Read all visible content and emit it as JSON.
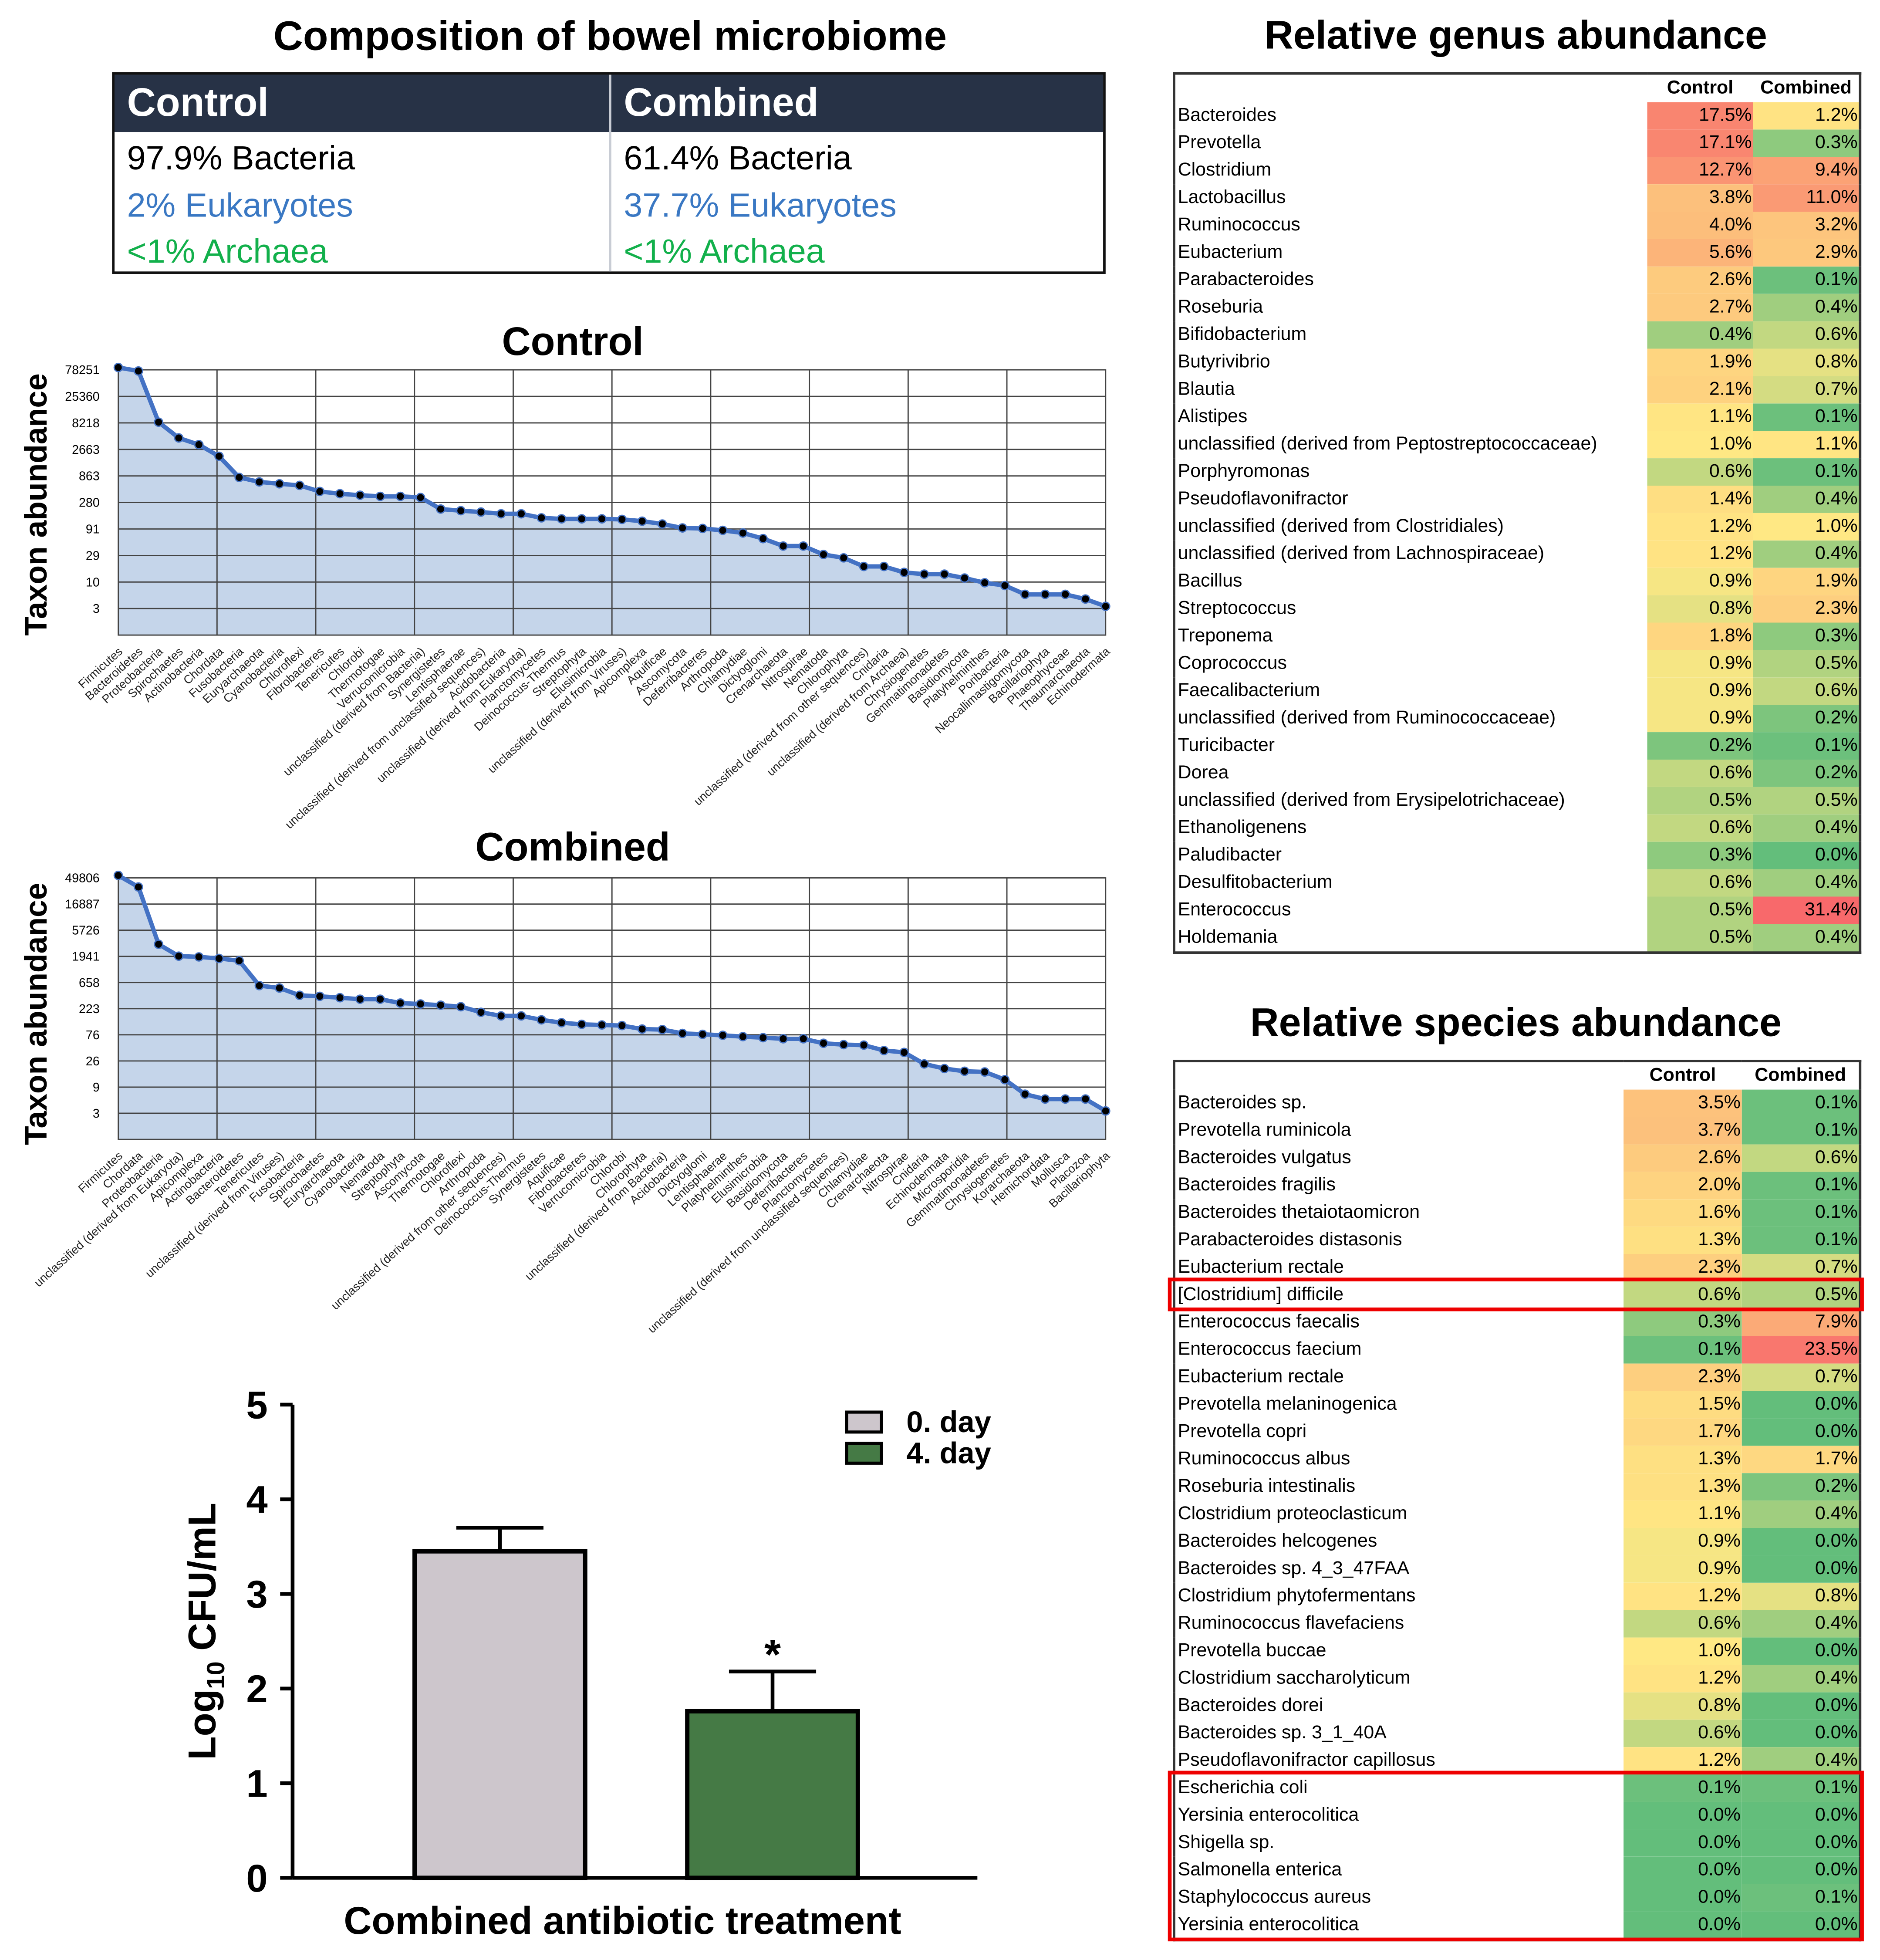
{
  "composition": {
    "title": "Composition of bowel microbiome",
    "columns": [
      {
        "header": "Control",
        "bacteria": "97.9% Bacteria",
        "eukaryotes": "2% Eukaryotes",
        "archaea": "<1% Archaea"
      },
      {
        "header": "Combined",
        "bacteria": "61.4% Bacteria",
        "eukaryotes": "37.7% Eukaryotes",
        "archaea": "<1% Archaea"
      }
    ]
  },
  "colors": {
    "header_bg": "#273246",
    "eukaryotes": "#3a78c3",
    "archaea": "#12b04b",
    "area_fill": "#c5d5ea",
    "line": "#4472c4",
    "bar_day0": "#cdc6cc",
    "bar_day4": "#457a45",
    "heat_low": "#63be7b",
    "heat_mid": "#ffe884",
    "heat_orange": "#fbaa77",
    "heat_high": "#f8696b",
    "highlight": "#ee0000"
  },
  "chart_data": [
    {
      "type": "area",
      "title": "Control",
      "ylabel": "Taxon abundance",
      "yscale": "log",
      "yticks": [
        3,
        10,
        29,
        91,
        280,
        863,
        2663,
        8218,
        25360,
        78251
      ],
      "grid": true,
      "categories": [
        "Firmicutes",
        "Bacteroidetes",
        "Proteobacteria",
        "Spirochaetes",
        "Actinobacteria",
        "Chordata",
        "Fusobacteria",
        "Euryarchaeota",
        "Cyanobacteria",
        "Chloroflexi",
        "Fibrobacteres",
        "Tenericutes",
        "Chlorobi",
        "Thermotogae",
        "Verrucomicrobia",
        "unclassified (derived from Bacteria)",
        "Synergistetes",
        "Lentisphaerae",
        "unclassified (derived from unclassified sequences)",
        "Acidobacteria",
        "unclassified (derived from Eukaryota)",
        "Planctomycetes",
        "Deinococcus-Thermus",
        "Streptophyta",
        "Elusimicrobia",
        "unclassified (derived from Viruses)",
        "Apicomplexa",
        "Aquificae",
        "Ascomycota",
        "Deferribacteres",
        "Arthropoda",
        "Chlamydiae",
        "Dictyoglomi",
        "Crenarchaeota",
        "Nitrospirae",
        "Nematoda",
        "Chlorophyta",
        "unclassified (derived from other sequences)",
        "Cnidaria",
        "unclassified (derived from Archaea)",
        "Chrysiogenetes",
        "Gemmatimonadetes",
        "Basidiomycota",
        "Platyhelminthes",
        "Poribacteria",
        "Neocallimastigomycota",
        "Bacillariophyta",
        "Phaeophyceae",
        "Thaumarchaeota",
        "Echinodermata"
      ],
      "values": [
        86500,
        74500,
        8430,
        4300,
        3230,
        1970,
        800,
        660,
        610,
        570,
        440,
        400,
        375,
        357,
        357,
        340,
        208,
        194,
        183,
        170,
        170,
        143,
        137,
        137,
        137,
        134,
        124,
        110,
        93,
        91,
        84,
        75,
        59,
        43,
        43,
        30,
        26,
        18,
        18,
        14,
        13,
        13,
        11,
        9,
        8,
        5.5,
        5.5,
        5.5,
        4.5,
        3.3
      ]
    },
    {
      "type": "area",
      "title": "Combined",
      "ylabel": "Taxon abundance",
      "yscale": "log",
      "yticks": [
        3,
        9,
        26,
        76,
        223,
        658,
        1941,
        5726,
        16887,
        49806
      ],
      "grid": true,
      "categories": [
        "Firmicutes",
        "Chordata",
        "Proteobacteria",
        "unclassified (derived from Eukaryota)",
        "Apicomplexa",
        "Actinobacteria",
        "Bacteroidetes",
        "Tenericutes",
        "unclassified (derived from Viruses)",
        "Fusobacteria",
        "Spirochaetes",
        "Euryarchaeota",
        "Cyanobacteria",
        "Nematoda",
        "Streptophyta",
        "Ascomycota",
        "Thermotogae",
        "Chloroflexi",
        "Arthropoda",
        "unclassified (derived from other sequences)",
        "Deinococcus-Thermus",
        "Synergistetes",
        "Aquificae",
        "Fibrobacteres",
        "Verrucomicrobia",
        "Chlorobi",
        "Chlorophyta",
        "unclassified (derived from Bacteria)",
        "Acidobacteria",
        "Dictyoglomi",
        "Lentisphaerae",
        "Platyhelminthes",
        "Elusimicrobia",
        "Basidiomycota",
        "Deferribacteres",
        "Planctomycetes",
        "unclassified (derived from unclassified sequences)",
        "Chlamydiae",
        "Crenarchaeota",
        "Nitrospirae",
        "Cnidaria",
        "Echinodermata",
        "Microsporidia",
        "Gemmatimonadetes",
        "Chrysiogenetes",
        "Korarchaeota",
        "Hemichordata",
        "Mollusca",
        "Placozoa",
        "Bacillariophyta"
      ],
      "values": [
        55200,
        34200,
        3220,
        1970,
        1910,
        1790,
        1630,
        583,
        528,
        391,
        375,
        354,
        333,
        333,
        284,
        273,
        260,
        244,
        194,
        167,
        167,
        142,
        126,
        118,
        115,
        112,
        97,
        95,
        81,
        78,
        75,
        71,
        68,
        65,
        65,
        54,
        51,
        50,
        40,
        37,
        23,
        19,
        17,
        16.5,
        12,
        6.6,
        5.4,
        5.4,
        5.4,
        3.3
      ]
    },
    {
      "type": "bar",
      "categories": [
        "0. day",
        "4. day"
      ],
      "values": [
        3.45,
        1.76
      ],
      "errors": [
        0.25,
        0.42
      ],
      "significance": [
        "",
        "*"
      ],
      "ylim": [
        0,
        5
      ],
      "yticks": [
        0,
        1,
        2,
        3,
        4,
        5
      ],
      "ylabel_main": "Log",
      "ylabel_sub": "10",
      "ylabel_unit": " CFU/mL",
      "xlabel": "Combined antibiotic treatment",
      "legend": [
        "0. day",
        "4. day"
      ],
      "legend_position": "top-right"
    }
  ],
  "genus_table": {
    "title": "Relative genus abundance",
    "headers": [
      "Control",
      "Combined"
    ],
    "rows": [
      {
        "name": "Bacteroides",
        "control": "17.5%",
        "combined": "1.2%"
      },
      {
        "name": "Prevotella",
        "control": "17.1%",
        "combined": "0.3%"
      },
      {
        "name": "Clostridium",
        "control": "12.7%",
        "combined": "9.4%"
      },
      {
        "name": "Lactobacillus",
        "control": "3.8%",
        "combined": "11.0%"
      },
      {
        "name": "Ruminococcus",
        "control": "4.0%",
        "combined": "3.2%"
      },
      {
        "name": "Eubacterium",
        "control": "5.6%",
        "combined": "2.9%"
      },
      {
        "name": "Parabacteroides",
        "control": "2.6%",
        "combined": "0.1%"
      },
      {
        "name": "Roseburia",
        "control": "2.7%",
        "combined": "0.4%"
      },
      {
        "name": "Bifidobacterium",
        "control": "0.4%",
        "combined": "0.6%"
      },
      {
        "name": "Butyrivibrio",
        "control": "1.9%",
        "combined": "0.8%"
      },
      {
        "name": "Blautia",
        "control": "2.1%",
        "combined": "0.7%"
      },
      {
        "name": "Alistipes",
        "control": "1.1%",
        "combined": "0.1%"
      },
      {
        "name": "unclassified (derived from Peptostreptococcaceae)",
        "control": "1.0%",
        "combined": "1.1%"
      },
      {
        "name": "Porphyromonas",
        "control": "0.6%",
        "combined": "0.1%"
      },
      {
        "name": "Pseudoflavonifractor",
        "control": "1.4%",
        "combined": "0.4%"
      },
      {
        "name": "unclassified (derived from Clostridiales)",
        "control": "1.2%",
        "combined": "1.0%"
      },
      {
        "name": "unclassified (derived from Lachnospiraceae)",
        "control": "1.2%",
        "combined": "0.4%"
      },
      {
        "name": "Bacillus",
        "control": "0.9%",
        "combined": "1.9%"
      },
      {
        "name": "Streptococcus",
        "control": "0.8%",
        "combined": "2.3%"
      },
      {
        "name": "Treponema",
        "control": "1.8%",
        "combined": "0.3%"
      },
      {
        "name": "Coprococcus",
        "control": "0.9%",
        "combined": "0.5%"
      },
      {
        "name": "Faecalibacterium",
        "control": "0.9%",
        "combined": "0.6%"
      },
      {
        "name": "unclassified (derived from Ruminococcaceae)",
        "control": "0.9%",
        "combined": "0.2%"
      },
      {
        "name": "Turicibacter",
        "control": "0.2%",
        "combined": "0.1%"
      },
      {
        "name": "Dorea",
        "control": "0.6%",
        "combined": "0.2%"
      },
      {
        "name": "unclassified (derived from Erysipelotrichaceae)",
        "control": "0.5%",
        "combined": "0.5%"
      },
      {
        "name": "Ethanoligenens",
        "control": "0.6%",
        "combined": "0.4%"
      },
      {
        "name": "Paludibacter",
        "control": "0.3%",
        "combined": "0.0%"
      },
      {
        "name": "Desulfitobacterium",
        "control": "0.6%",
        "combined": "0.4%"
      },
      {
        "name": "Enterococcus",
        "control": "0.5%",
        "combined": "31.4%"
      },
      {
        "name": "Holdemania",
        "control": "0.5%",
        "combined": "0.4%"
      }
    ]
  },
  "species_table": {
    "title": "Relative species abundance",
    "headers": [
      "Control",
      "Combined"
    ],
    "highlight_groups": [
      [
        7,
        7
      ],
      [
        25,
        30
      ]
    ],
    "rows": [
      {
        "name": "Bacteroides sp.",
        "control": "3.5%",
        "combined": "0.1%"
      },
      {
        "name": "Prevotella ruminicola",
        "control": "3.7%",
        "combined": "0.1%"
      },
      {
        "name": "Bacteroides vulgatus",
        "control": "2.6%",
        "combined": "0.6%"
      },
      {
        "name": "Bacteroides fragilis",
        "control": "2.0%",
        "combined": "0.1%"
      },
      {
        "name": "Bacteroides thetaiotaomicron",
        "control": "1.6%",
        "combined": "0.1%"
      },
      {
        "name": "Parabacteroides distasonis",
        "control": "1.3%",
        "combined": "0.1%"
      },
      {
        "name": "Eubacterium rectale",
        "control": "2.3%",
        "combined": "0.7%"
      },
      {
        "name": "[Clostridium] difficile",
        "control": "0.6%",
        "combined": "0.5%"
      },
      {
        "name": "Enterococcus faecalis",
        "control": "0.3%",
        "combined": "7.9%"
      },
      {
        "name": "Enterococcus faecium",
        "control": "0.1%",
        "combined": "23.5%"
      },
      {
        "name": "Eubacterium rectale",
        "control": "2.3%",
        "combined": "0.7%"
      },
      {
        "name": "Prevotella melaninogenica",
        "control": "1.5%",
        "combined": "0.0%"
      },
      {
        "name": "Prevotella copri",
        "control": "1.7%",
        "combined": "0.0%"
      },
      {
        "name": "Ruminococcus albus",
        "control": "1.3%",
        "combined": "1.7%"
      },
      {
        "name": "Roseburia intestinalis",
        "control": "1.3%",
        "combined": "0.2%"
      },
      {
        "name": "Clostridium proteoclasticum",
        "control": "1.1%",
        "combined": "0.4%"
      },
      {
        "name": "Bacteroides helcogenes",
        "control": "0.9%",
        "combined": "0.0%"
      },
      {
        "name": "Bacteroides sp. 4_3_47FAA",
        "control": "0.9%",
        "combined": "0.0%"
      },
      {
        "name": "Clostridium phytofermentans",
        "control": "1.2%",
        "combined": "0.8%"
      },
      {
        "name": "Ruminococcus flavefaciens",
        "control": "0.6%",
        "combined": "0.4%"
      },
      {
        "name": "Prevotella buccae",
        "control": "1.0%",
        "combined": "0.0%"
      },
      {
        "name": "Clostridium saccharolyticum",
        "control": "1.2%",
        "combined": "0.4%"
      },
      {
        "name": "Bacteroides dorei",
        "control": "0.8%",
        "combined": "0.0%"
      },
      {
        "name": "Bacteroides sp. 3_1_40A",
        "control": "0.6%",
        "combined": "0.0%"
      },
      {
        "name": "Pseudoflavonifractor capillosus",
        "control": "1.2%",
        "combined": "0.4%"
      },
      {
        "name": "Escherichia coli",
        "control": "0.1%",
        "combined": "0.1%"
      },
      {
        "name": "Yersinia enterocolitica",
        "control": "0.0%",
        "combined": "0.0%"
      },
      {
        "name": "Shigella sp.",
        "control": "0.0%",
        "combined": "0.0%"
      },
      {
        "name": "Salmonella enterica",
        "control": "0.0%",
        "combined": "0.0%"
      },
      {
        "name": "Staphylococcus aureus",
        "control": "0.0%",
        "combined": "0.1%"
      },
      {
        "name": "Yersinia enterocolitica",
        "control": "0.0%",
        "combined": "0.0%"
      }
    ]
  }
}
